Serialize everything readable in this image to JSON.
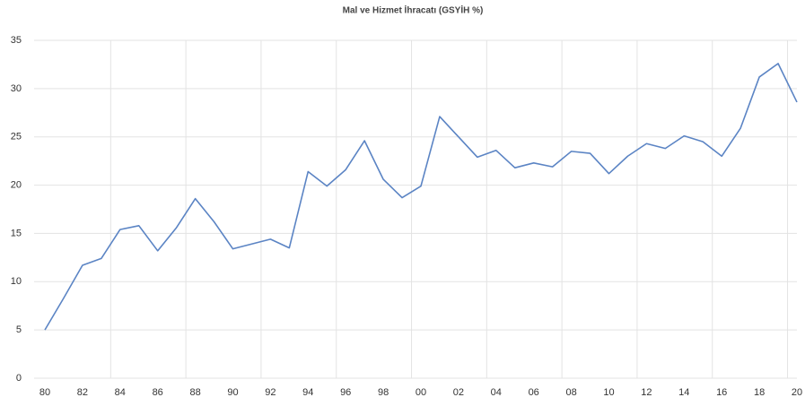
{
  "chart_data": {
    "type": "line",
    "title": "Mal ve Hizmet İhracatı (GSYİH %)",
    "categories": [
      "80",
      null,
      "82",
      null,
      "84",
      null,
      "86",
      null,
      "88",
      null,
      "90",
      null,
      "92",
      null,
      "94",
      null,
      "96",
      null,
      "98",
      null,
      "00",
      null,
      "02",
      null,
      "04",
      null,
      "06",
      null,
      "08",
      null,
      "10",
      null,
      "12",
      null,
      "14",
      null,
      "16",
      null,
      "18",
      null,
      "20"
    ],
    "series": [
      {
        "name": "Mal ve Hizmet İhracatı",
        "color": "#5b84c4",
        "values": [
          5.0,
          8.3,
          11.7,
          12.4,
          15.4,
          15.8,
          13.2,
          15.6,
          18.6,
          16.2,
          13.4,
          13.9,
          14.4,
          13.5,
          21.4,
          19.9,
          21.6,
          24.6,
          20.6,
          18.7,
          19.9,
          27.1,
          25.0,
          22.9,
          23.6,
          21.8,
          22.3,
          21.9,
          23.5,
          23.3,
          21.2,
          23.0,
          24.3,
          23.8,
          25.1,
          24.5,
          23.0,
          25.9,
          31.2,
          32.6,
          28.6
        ]
      }
    ],
    "ylim": [
      0,
      35
    ],
    "yticks": [
      0,
      5,
      10,
      15,
      20,
      25,
      30,
      35
    ],
    "grid": true
  }
}
